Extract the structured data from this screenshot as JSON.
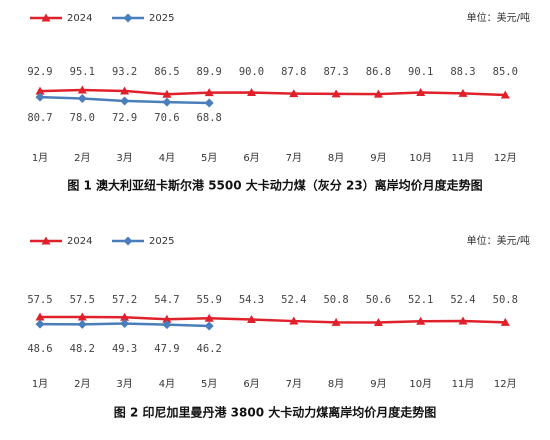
{
  "chart_data": [
    {
      "type": "line",
      "title": "图 1   澳大利亚纽卡斯尔港 5500 大卡动力煤（灰分 23）离岸均价月度走势图",
      "unit": "单位：美元/吨",
      "categories": [
        "1月",
        "2月",
        "3月",
        "4月",
        "5月",
        "6月",
        "7月",
        "8月",
        "9月",
        "10月",
        "11月",
        "12月"
      ],
      "series": [
        {
          "name": "2024",
          "color": "#e0202a",
          "marker": "triangle",
          "values": [
            92.9,
            95.1,
            93.2,
            86.5,
            89.9,
            90.0,
            87.8,
            87.3,
            86.8,
            90.1,
            88.3,
            85.0
          ],
          "value_labels": [
            "92.9",
            "95.1",
            "93.2",
            "86.5",
            "89.9",
            "90.0",
            "87.8",
            "87.3",
            "86.8",
            "90.1",
            "88.3",
            "85.0"
          ]
        },
        {
          "name": "2025",
          "color": "#4a7ebb",
          "marker": "diamond",
          "values": [
            80.7,
            78.0,
            72.9,
            70.6,
            68.8,
            null,
            null,
            null,
            null,
            null,
            null,
            null
          ],
          "value_labels": [
            "80.7",
            "78.0",
            "72.9",
            "70.6",
            "68.8",
            null,
            null,
            null,
            null,
            null,
            null,
            null
          ]
        }
      ]
    },
    {
      "type": "line",
      "title": "图 2   印尼加里曼丹港 3800 大卡动力煤离岸均价月度走势图",
      "unit": "单位：美元/吨",
      "categories": [
        "1月",
        "2月",
        "3月",
        "4月",
        "5月",
        "6月",
        "7月",
        "8月",
        "9月",
        "10月",
        "11月",
        "12月"
      ],
      "series": [
        {
          "name": "2024",
          "color": "#e0202a",
          "marker": "triangle",
          "values": [
            57.5,
            57.5,
            57.2,
            54.7,
            55.9,
            54.3,
            52.4,
            50.8,
            50.6,
            52.1,
            52.4,
            50.8
          ],
          "value_labels": [
            "57.5",
            "57.5",
            "57.2",
            "54.7",
            "55.9",
            "54.3",
            "52.4",
            "50.8",
            "50.6",
            "52.1",
            "52.4",
            "50.8"
          ]
        },
        {
          "name": "2025",
          "color": "#4a7ebb",
          "marker": "diamond",
          "values": [
            48.6,
            48.2,
            49.3,
            47.9,
            46.2,
            null,
            null,
            null,
            null,
            null,
            null,
            null
          ],
          "value_labels": [
            "48.6",
            "48.2",
            "49.3",
            "47.9",
            "46.2",
            null,
            null,
            null,
            null,
            null,
            null,
            null
          ]
        }
      ]
    }
  ]
}
